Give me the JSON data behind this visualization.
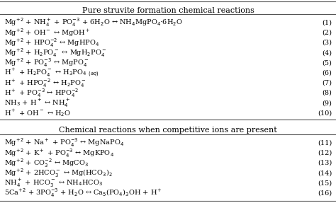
{
  "title1": "Pure struvite formation chemical reactions",
  "title2": "Chemical reactions when competitive ions are present",
  "reactions_top": [
    [
      "Mg$^{+2}$ + NH$_4^+$ + PO$_4^{-3}$ + 6H$_2$O ↔ NH$_4$MgPO$_4$·6H$_2$O",
      "(1)"
    ],
    [
      "Mg$^{+2}$ + OH$^-$ ↔ MgOH$^+$",
      "(2)"
    ],
    [
      "Mg$^{+2}$ + HPO$_4^{-2}$ ↔ MgHPO$_4$",
      "(3)"
    ],
    [
      "Mg$^{+2}$ + H$_2$PO$_4^-$ ↔ MgH$_2$PO$_4^-$",
      "(4)"
    ],
    [
      "Mg$^{+2}$ + PO$_4^{-3}$ ↔ MgPO$_4^-$",
      "(5)"
    ],
    [
      "H$^+$ + H$_2$PO$_4^-$ ↔ H$_3$PO$_{4}$ $_{(aq)}$",
      "(6)"
    ],
    [
      "H$^+$ + HPO$_4^{-2}$ ↔ H$_2$PO$_4^-$",
      "(7)"
    ],
    [
      "H$^+$ + PO$_4^{-3}$ ↔ HPO$_4^{-2}$",
      "(8)"
    ],
    [
      "NH$_3$ + H$^+$ ↔ NH$_4^+$",
      "(9)"
    ],
    [
      "H$^+$ + OH$^-$ ↔ H$_2$O",
      "(10)"
    ]
  ],
  "reactions_bottom": [
    [
      "Mg$^{+2}$ + Na$^+$ + PO$_4^{-3}$ ↔ MgNaPO$_4$",
      "(11)"
    ],
    [
      "Mg$^{+2}$ + K$^+$ + PO$_4^{-3}$ ↔ MgKPO$_4$",
      "(12)"
    ],
    [
      "Mg$^{+2}$ + CO$_3^{-2}$ ↔ MgCO$_3$",
      "(13)"
    ],
    [
      "Mg$^{+2}$ + 2HCO$_3^-$ ↔ Mg(HCO$_3$)$_2$",
      "(14)"
    ],
    [
      "NH$_4^+$ + HCO$_3^-$ ↔ NH$_4$HCO$_3$",
      "(15)"
    ],
    [
      "5Ca$^{+2}$ + 3PO$_4^{-3}$ + H$_2$O ↔ Ca$_5$(PO$_4$)$_3$OH + H$^+$",
      "(16)"
    ]
  ],
  "bg_color": "#ffffff",
  "text_color": "#000000",
  "fontsize": 7.0,
  "title_fontsize": 8.0,
  "line_color": "#555555",
  "line_width": 0.8
}
